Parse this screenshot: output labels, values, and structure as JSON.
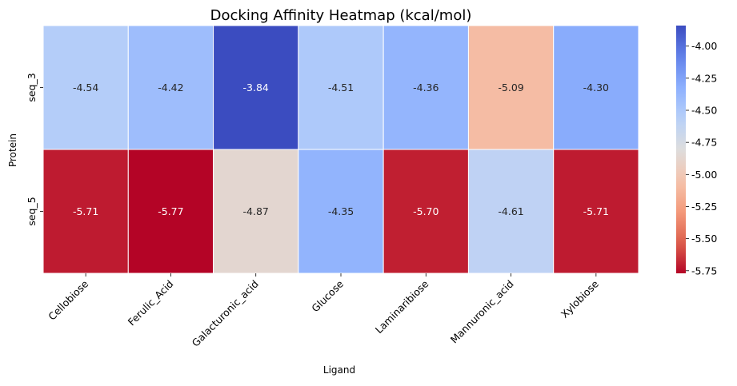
{
  "chart_data": {
    "type": "heatmap",
    "title": "Docking Affinity Heatmap (kcal/mol)",
    "xlabel": "Ligand",
    "ylabel": "Protein",
    "x_categories": [
      "Cellobiose",
      "Ferulic_Acid",
      "Galacturonic_acid",
      "Glucose",
      "Laminaribiose",
      "Mannuronic_acid",
      "Xylobiose"
    ],
    "y_categories": [
      "seq_3",
      "seq_5"
    ],
    "values": [
      [
        -4.54,
        -4.42,
        -3.84,
        -4.51,
        -4.36,
        -5.09,
        -4.3
      ],
      [
        -5.71,
        -5.77,
        -4.87,
        -4.35,
        -5.7,
        -4.61,
        -5.71
      ]
    ],
    "value_labels": [
      [
        "-4.54",
        "-4.42",
        "-3.84",
        "-4.51",
        "-4.36",
        "-5.09",
        "-4.30"
      ],
      [
        "-5.71",
        "-5.77",
        "-4.87",
        "-4.35",
        "-5.70",
        "-4.61",
        "-5.71"
      ]
    ],
    "colormap": "coolwarm_r",
    "color_range": [
      -5.77,
      -3.84
    ],
    "colorbar_ticks": [
      "-4.00",
      "-4.25",
      "-4.50",
      "-4.75",
      "-5.00",
      "-5.25",
      "-5.50",
      "-5.75"
    ],
    "colorbar_tick_values": [
      -4.0,
      -4.25,
      -4.5,
      -4.75,
      -5.0,
      -5.25,
      -5.5,
      -5.75
    ],
    "grid": true,
    "legend_position": "right"
  }
}
